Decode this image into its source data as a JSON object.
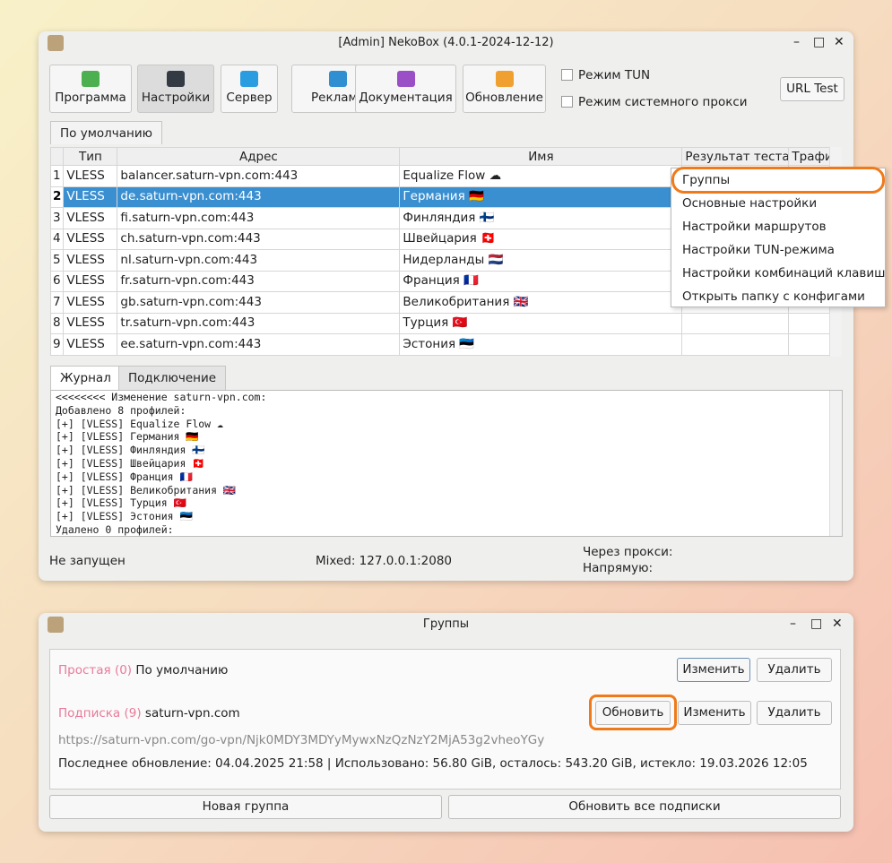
{
  "main": {
    "title": "[Admin] NekoBox (4.0.1-2024-12-12)",
    "toolbar": [
      {
        "label": "Программа",
        "icon": "play-window-icon",
        "color": "#4caf50"
      },
      {
        "label": "Настройки",
        "icon": "settings-sliders-icon",
        "color": "#333a44"
      },
      {
        "label": "Сервер",
        "icon": "folder-icon",
        "color": "#2a9de0"
      },
      {
        "label": "Реклама",
        "icon": "globe-icon",
        "color": "#2f8fd0"
      },
      {
        "label": "Документация",
        "icon": "help-icon",
        "color": "#9b4fc7"
      },
      {
        "label": "Обновление",
        "icon": "update-icon",
        "color": "#f0a030"
      }
    ],
    "tun_mode": "Режим TUN",
    "system_proxy": "Режим системного прокси",
    "url_test": "URL Test",
    "group_tab": "По умолчанию",
    "columns": [
      "Тип",
      "Адрес",
      "Имя",
      "Результат теста",
      "Трафик"
    ],
    "rows": [
      [
        "1",
        "VLESS",
        "balancer.saturn-vpn.com:443",
        "Equalize Flow ☁"
      ],
      [
        "2",
        "VLESS",
        "de.saturn-vpn.com:443",
        "Германия 🇩🇪"
      ],
      [
        "3",
        "VLESS",
        "fi.saturn-vpn.com:443",
        "Финляндия 🇫🇮"
      ],
      [
        "4",
        "VLESS",
        "ch.saturn-vpn.com:443",
        "Швейцария 🇨🇭"
      ],
      [
        "5",
        "VLESS",
        "nl.saturn-vpn.com:443",
        "Нидерланды 🇳🇱"
      ],
      [
        "6",
        "VLESS",
        "fr.saturn-vpn.com:443",
        "Франция 🇫🇷"
      ],
      [
        "7",
        "VLESS",
        "gb.saturn-vpn.com:443",
        "Великобритания 🇬🇧"
      ],
      [
        "8",
        "VLESS",
        "tr.saturn-vpn.com:443",
        "Турция 🇹🇷"
      ],
      [
        "9",
        "VLESS",
        "ee.saturn-vpn.com:443",
        "Эстония 🇪🇪"
      ]
    ],
    "menu": [
      "Группы",
      "Основные настройки",
      "Настройки маршрутов",
      "Настройки TUN-режима",
      "Настройки комбинаций клавиш",
      "Открыть папку с конфигами"
    ],
    "tabs": [
      "Журнал",
      "Подключение"
    ],
    "log": [
      "<<<<<<<< Изменение saturn-vpn.com:",
      "Добавлено 8 профилей:",
      "[+] [VLESS] Equalize Flow ☁",
      "[+] [VLESS] Германия 🇩🇪",
      "[+] [VLESS] Финляндия 🇫🇮",
      "[+] [VLESS] Швейцария 🇨🇭",
      "[+] [VLESS] Франция 🇫🇷",
      "[+] [VLESS] Великобритания 🇬🇧",
      "[+] [VLESS] Турция 🇹🇷",
      "[+] [VLESS] Эстония 🇪🇪",
      "Удалено 0 профилей:"
    ],
    "status": "Не запущен",
    "mixed": "Mixed: 127.0.0.1:2080",
    "via_proxy": "Через прокси:",
    "direct": "Напрямую:"
  },
  "groups": {
    "title": "Группы",
    "g1_type": "Простая (0)",
    "g1_name": "По умолчанию",
    "g2_type": "Подписка (9)",
    "g2_name": "saturn-vpn.com",
    "url": "https://saturn-vpn.com/go-vpn/Njk0MDY3MDYyMywxNzQzNzY2MjA53g2vheoYGy",
    "info": "Последнее обновление: 04.04.2025 21:58 | Использовано: 56.80 GiB, осталось: 543.20 GiB, истекло: 19.03.2026 12:05",
    "edit": "Изменить",
    "delete": "Удалить",
    "update": "Обновить",
    "new_group": "Новая группа",
    "update_all": "Обновить все подписки"
  }
}
